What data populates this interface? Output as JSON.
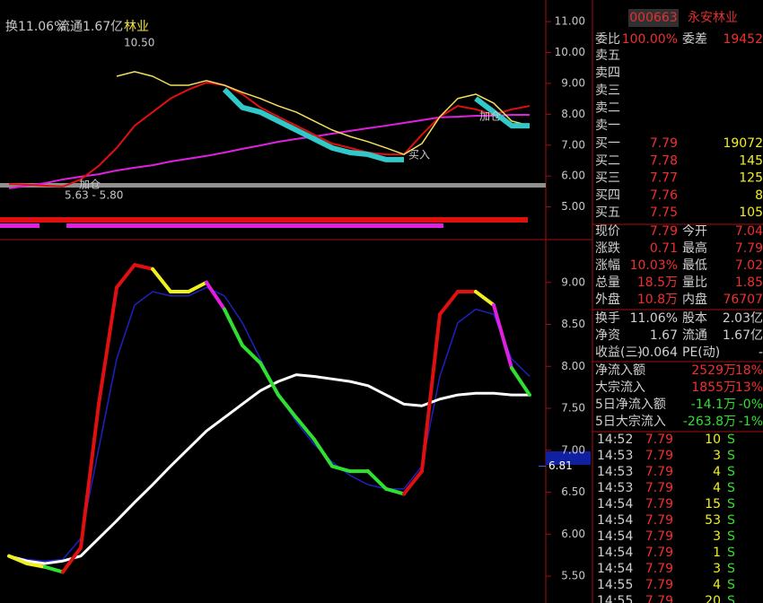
{
  "header": {
    "turnover": "换11.06%",
    "float": "流通1.67亿",
    "sector": "林业",
    "code": "000663",
    "name": "永安林业"
  },
  "chart_data": [
    {
      "type": "line",
      "ylim": [
        4,
        11.7
      ],
      "yticks": [
        {
          "value": 11,
          "label": "11.00"
        },
        {
          "value": 10,
          "label": "10.00"
        },
        {
          "value": 9,
          "label": "9.00"
        },
        {
          "value": 8,
          "label": "8.00"
        },
        {
          "value": 7,
          "label": "7.00"
        },
        {
          "value": 6,
          "label": "6.00"
        },
        {
          "value": 5,
          "label": "5.00"
        }
      ],
      "annotations": [
        "10.50",
        "5.63 - 5.80",
        "加仓",
        "买入",
        "加仓"
      ],
      "series": [
        {
          "color": "#e020e0",
          "values": [
            5.6,
            5.69,
            5.77,
            5.89,
            5.98,
            6.06,
            6.18,
            6.27,
            6.35,
            6.47,
            6.56,
            6.65,
            6.76,
            6.88,
            6.99,
            7.11,
            7.2,
            7.28,
            7.37,
            7.46,
            7.55,
            7.63,
            7.72,
            7.81,
            7.9,
            7.92,
            7.95,
            7.95,
            7.98,
            7.98
          ]
        },
        {
          "color": "#e01010",
          "values": [
            5.74,
            5.72,
            5.69,
            5.66,
            5.89,
            6.33,
            6.91,
            7.63,
            8.07,
            8.51,
            8.8,
            9.03,
            8.94,
            8.65,
            8.22,
            7.92,
            7.63,
            7.34,
            7.05,
            6.91,
            6.76,
            6.7,
            6.7,
            7.34,
            7.92,
            8.27,
            8.16,
            7.98,
            8.16,
            8.27
          ]
        },
        {
          "color": "#f0e060",
          "values": [
            null,
            null,
            null,
            null,
            null,
            null,
            9.23,
            9.38,
            9.23,
            8.94,
            8.94,
            9.09,
            8.94,
            8.71,
            8.51,
            8.27,
            8.07,
            7.78,
            7.49,
            7.28,
            7.11,
            6.91,
            6.7,
            7.05,
            7.92,
            8.51,
            8.65,
            8.36,
            7.78,
            7.63
          ]
        },
        {
          "color": "#30c8c8",
          "values": [
            null,
            null,
            null,
            null,
            null,
            null,
            null,
            null,
            null,
            null,
            null,
            null,
            8.8,
            8.22,
            8.07,
            7.78,
            7.49,
            7.2,
            6.91,
            6.76,
            6.7,
            6.53,
            6.53,
            null,
            null,
            null,
            8.51,
            8.07,
            7.63,
            7.63
          ]
        }
      ]
    },
    {
      "type": "line",
      "ylim": [
        5.18,
        9.5
      ],
      "yticks": [
        {
          "value": 9,
          "label": "9.00"
        },
        {
          "value": 8.5,
          "label": "8.50"
        },
        {
          "value": 8,
          "label": "8.00"
        },
        {
          "value": 7.5,
          "label": "7.50"
        },
        {
          "value": 7,
          "label": "7.00"
        },
        {
          "value": 6.5,
          "label": "6.50"
        },
        {
          "value": 6,
          "label": "6.00"
        },
        {
          "value": 5.5,
          "label": "5.50"
        }
      ],
      "marker": {
        "value": 6.81,
        "label": "6.81"
      },
      "series": [
        {
          "color": "#2020c0",
          "values": [
            5.74,
            5.7,
            5.68,
            5.7,
            5.95,
            7.02,
            8.09,
            8.73,
            8.89,
            8.84,
            8.84,
            8.94,
            8.84,
            8.52,
            8.09,
            7.66,
            7.34,
            7.07,
            6.86,
            6.7,
            6.59,
            6.54,
            6.54,
            6.81,
            7.88,
            8.52,
            8.68,
            8.62,
            8.09,
            7.88
          ]
        },
        {
          "color": "#ffffff",
          "values": [
            5.74,
            5.68,
            5.65,
            5.68,
            5.74,
            5.95,
            6.16,
            6.38,
            6.59,
            6.81,
            7.02,
            7.23,
            7.39,
            7.55,
            7.71,
            7.82,
            7.9,
            7.88,
            7.85,
            7.82,
            7.77,
            7.66,
            7.55,
            7.53,
            7.61,
            7.66,
            7.68,
            7.68,
            7.66,
            7.66
          ]
        },
        {
          "values": [
            5.74,
            5.65,
            5.61,
            5.55,
            5.84,
            7.55,
            8.94,
            9.21,
            9.16,
            8.89,
            8.89,
            9.0,
            8.68,
            8.25,
            8.04,
            7.66,
            7.39,
            7.13,
            6.81,
            6.75,
            6.75,
            6.54,
            6.48,
            6.75,
            8.62,
            8.89,
            8.89,
            8.73,
            7.98,
            7.66
          ],
          "colors": [
            "#f0f020",
            "#f0f020",
            "#f0f020",
            "#30e030",
            "#e01010",
            "#e01010",
            "#e01010",
            "#e01010",
            "#e01010",
            "#f0f020",
            "#f0f020",
            "#f0f020",
            "#e020e0",
            "#30e030",
            "#30e030",
            "#30e030",
            "#30e030",
            "#30e030",
            "#30e030",
            "#30e030",
            "#30e030",
            "#30e030",
            "#30e030",
            "#e01010",
            "#e01010",
            "#e01010",
            "#e01010",
            "#f0f020",
            "#e020e0",
            "#30e030"
          ]
        }
      ]
    }
  ],
  "orderbook": {
    "ratio": [
      "委比",
      "100.00%",
      "委差",
      "19452"
    ],
    "sell": [
      "卖五",
      "卖四",
      "卖三",
      "卖二",
      "卖一"
    ],
    "buy": [
      [
        "买一",
        "7.79",
        "19072"
      ],
      [
        "买二",
        "7.78",
        "145"
      ],
      [
        "买三",
        "7.77",
        "125"
      ],
      [
        "买四",
        "7.76",
        "8"
      ],
      [
        "买五",
        "7.75",
        "105"
      ]
    ]
  },
  "quote": [
    [
      "现价",
      "7.79",
      "今开",
      "7.04"
    ],
    [
      "涨跌",
      "0.71",
      "最高",
      "7.79"
    ],
    [
      "涨幅",
      "10.03%",
      "最低",
      "7.02"
    ],
    [
      "总量",
      "18.5万",
      "量比",
      "1.85"
    ],
    [
      "外盘",
      "10.8万",
      "内盘",
      "76707"
    ]
  ],
  "stats": [
    [
      "换手",
      "11.06%",
      "股本",
      "2.03亿"
    ],
    [
      "净资",
      "1.67",
      "流通",
      "1.67亿"
    ],
    [
      "收益(三)",
      "-0.064",
      "PE(动)",
      "-"
    ]
  ],
  "flow": [
    [
      "净流入额",
      "2529万",
      "18%"
    ],
    [
      "大宗流入",
      "1855万",
      "13%"
    ],
    [
      "5日净流入额",
      "-14.1万",
      "-0%"
    ],
    [
      "5日大宗流入",
      "-263.8万",
      "-1%"
    ]
  ],
  "trades": [
    [
      "14:52",
      "7.79",
      "10",
      "S"
    ],
    [
      "14:53",
      "7.79",
      "3",
      "S"
    ],
    [
      "14:53",
      "7.79",
      "4",
      "S"
    ],
    [
      "14:53",
      "7.79",
      "4",
      "S"
    ],
    [
      "14:54",
      "7.79",
      "15",
      "S"
    ],
    [
      "14:54",
      "7.79",
      "53",
      "S"
    ],
    [
      "14:54",
      "7.79",
      "3",
      "S"
    ],
    [
      "14:54",
      "7.79",
      "1",
      "S"
    ],
    [
      "14:54",
      "7.79",
      "3",
      "S"
    ],
    [
      "14:55",
      "7.79",
      "4",
      "S"
    ],
    [
      "14:55",
      "7.79",
      "20",
      "S"
    ]
  ]
}
